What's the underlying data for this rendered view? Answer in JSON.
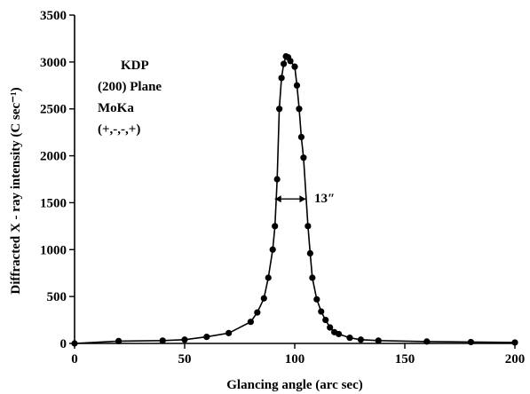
{
  "chart_data": {
    "type": "scatter",
    "xlabel": "Glancing angle (arc sec)",
    "ylabel": "Diffracted X - ray intensity (C sec⁻¹)",
    "xlim": [
      0,
      200
    ],
    "ylim": [
      0,
      3500
    ],
    "xticks": [
      0,
      50,
      100,
      150,
      200
    ],
    "yticks": [
      0,
      500,
      1000,
      1500,
      2000,
      2500,
      3000,
      3500
    ],
    "grid": false,
    "annotations": {
      "sample": "KDP",
      "plane": "(200) Plane",
      "radiation": "MoKa",
      "geometry": "(+,-,-,+)",
      "fwhm": "13″"
    },
    "fwhm_arrow": {
      "x_left": 91,
      "x_right": 105,
      "y": 1540
    },
    "series": [
      {
        "points": [
          [
            0,
            0
          ],
          [
            20,
            25
          ],
          [
            40,
            30
          ],
          [
            50,
            40
          ],
          [
            60,
            70
          ],
          [
            70,
            110
          ],
          [
            80,
            230
          ],
          [
            83,
            330
          ],
          [
            86,
            480
          ],
          [
            88,
            700
          ],
          [
            90,
            1000
          ],
          [
            91,
            1250
          ],
          [
            92,
            1750
          ],
          [
            93,
            2500
          ],
          [
            94,
            2830
          ],
          [
            95,
            2980
          ],
          [
            96,
            3060
          ],
          [
            97,
            3050
          ],
          [
            98,
            3010
          ],
          [
            100,
            2950
          ],
          [
            101,
            2750
          ],
          [
            102,
            2500
          ],
          [
            103,
            2200
          ],
          [
            104,
            1980
          ],
          [
            106,
            1250
          ],
          [
            107,
            960
          ],
          [
            108,
            700
          ],
          [
            110,
            470
          ],
          [
            112,
            340
          ],
          [
            114,
            250
          ],
          [
            116,
            170
          ],
          [
            118,
            120
          ],
          [
            120,
            100
          ],
          [
            125,
            60
          ],
          [
            130,
            40
          ],
          [
            138,
            30
          ],
          [
            160,
            20
          ],
          [
            180,
            15
          ],
          [
            200,
            10
          ]
        ]
      }
    ]
  }
}
